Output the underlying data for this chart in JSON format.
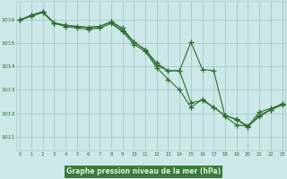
{
  "background_color": "#cce8e8",
  "plot_bg_color": "#cce8e8",
  "grid_color": "#aacccc",
  "line_color": "#2d6e2d",
  "marker_color": "#2d6e2d",
  "xlabel_bg": "#3a7a3a",
  "xlabel_fg": "#e0f0e0",
  "ylabel_ticks": [
    1011,
    1012,
    1013,
    1014,
    1015,
    1016
  ],
  "xticks": [
    0,
    1,
    2,
    3,
    4,
    5,
    6,
    7,
    8,
    9,
    10,
    11,
    12,
    13,
    14,
    15,
    16,
    17,
    18,
    19,
    20,
    21,
    22,
    23
  ],
  "xlabel": "Graphe pression niveau de la mer (hPa)",
  "ylim": [
    1010.4,
    1016.8
  ],
  "xlim": [
    -0.3,
    23.3
  ],
  "line1": [
    1016.0,
    1016.2,
    1016.35,
    1015.87,
    1015.77,
    1015.72,
    1015.68,
    1015.72,
    1015.92,
    1015.65,
    1015.05,
    1014.72,
    1014.15,
    1013.82,
    1013.82,
    1015.05,
    1013.88,
    1013.82,
    1011.85,
    1011.5,
    1011.45,
    1011.85,
    1012.15,
    1012.35
  ],
  "line2": [
    1016.0,
    1016.2,
    1016.35,
    1015.87,
    1015.77,
    1015.72,
    1015.68,
    1015.72,
    1015.92,
    1015.55,
    1015.05,
    1014.72,
    1014.05,
    1013.82,
    1013.82,
    1012.45,
    1012.55,
    1012.25,
    1011.9,
    1011.75,
    1011.45,
    1012.05,
    1012.2,
    1012.4
  ],
  "line3": [
    1016.0,
    1016.15,
    1016.32,
    1015.85,
    1015.72,
    1015.65,
    1015.6,
    1015.65,
    1015.85,
    1015.5,
    1014.95,
    1014.65,
    1013.95,
    1013.45,
    1013.0,
    1012.25,
    1012.6,
    1012.25,
    1011.9,
    1011.72,
    1011.42,
    1011.92,
    1012.15,
    1012.4
  ]
}
